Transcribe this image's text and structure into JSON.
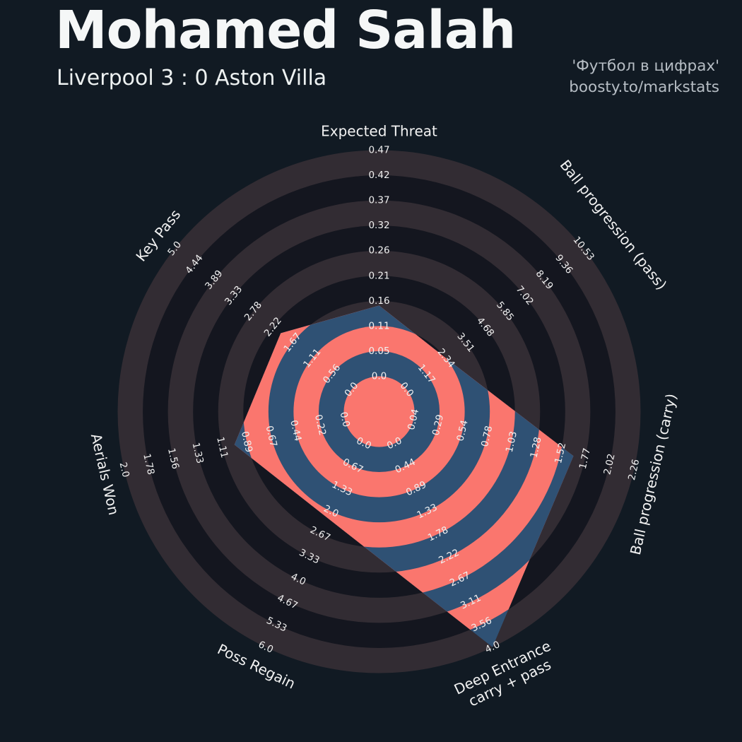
{
  "header": {
    "title": "Mohamed Salah",
    "subtitle": "Liverpool 3 : 0 Aston Villa",
    "credit_line1": "'Футбол в цифрах'",
    "credit_line2": "boosty.to/markstats"
  },
  "chart_data": {
    "type": "radar",
    "style": "concentric-ring-radar",
    "grid": "alternating-concentric-rings",
    "legend_position": "none",
    "rings_per_axis": 10,
    "axes": [
      {
        "label": "Expected Threat",
        "min": 0.0,
        "max": 0.47,
        "value": 0.147,
        "ticks": [
          "0.0",
          "0.05",
          "0.11",
          "0.16",
          "0.21",
          "0.26",
          "0.32",
          "0.37",
          "0.42",
          "0.47"
        ]
      },
      {
        "label": "Ball progression (pass)",
        "min": 0.0,
        "max": 10.53,
        "value": 2.34,
        "ticks": [
          "0.0",
          "1.17",
          "2.34",
          "3.51",
          "4.68",
          "5.85",
          "7.02",
          "8.19",
          "9.36",
          "10.53"
        ]
      },
      {
        "label": "Ball progression (carry)",
        "min": 0.04,
        "max": 2.26,
        "value": 1.65,
        "ticks": [
          "0.04",
          "0.29",
          "0.54",
          "0.78",
          "1.03",
          "1.28",
          "1.52",
          "1.77",
          "2.02",
          "2.26"
        ]
      },
      {
        "label": "Deep Entrance\ncarry + pass",
        "min": 0.0,
        "max": 4.0,
        "value": 4.0,
        "ticks": [
          "0.0",
          "0.44",
          "0.89",
          "1.33",
          "1.78",
          "2.22",
          "2.67",
          "3.11",
          "3.56",
          "4.0"
        ]
      },
      {
        "label": "Poss Regain",
        "min": 0.0,
        "max": 6.0,
        "value": 2.2,
        "ticks": [
          "0.0",
          "0.67",
          "1.33",
          "2.0",
          "2.67",
          "3.33",
          "4.0",
          "4.67",
          "5.33",
          "6.0"
        ]
      },
      {
        "label": "Aerials Won",
        "min": 0.0,
        "max": 2.0,
        "value": 1.0,
        "ticks": [
          "0.0",
          "0.22",
          "0.44",
          "0.67",
          "0.89",
          "1.11",
          "1.33",
          "1.56",
          "1.78",
          "2.0"
        ]
      },
      {
        "label": "Key Pass",
        "min": 0.0,
        "max": 5.0,
        "value": 2.0,
        "ticks": [
          "0.0",
          "0.56",
          "1.11",
          "1.67",
          "2.22",
          "2.78",
          "3.33",
          "3.89",
          "4.44",
          "5.0"
        ]
      }
    ],
    "colors": {
      "background": "#111a23",
      "ring_dark": "#14161f",
      "ring_light": "#322c33",
      "polygon_blue": "#2f5174",
      "polygon_red": "#fa766e",
      "tick_text": "#f0f0f0",
      "axis_title_text": "#f2f2f2",
      "title_text": "#f5f7f7",
      "subtitle_text": "#edf1f1",
      "credit_text": "#b6bdc4"
    }
  }
}
